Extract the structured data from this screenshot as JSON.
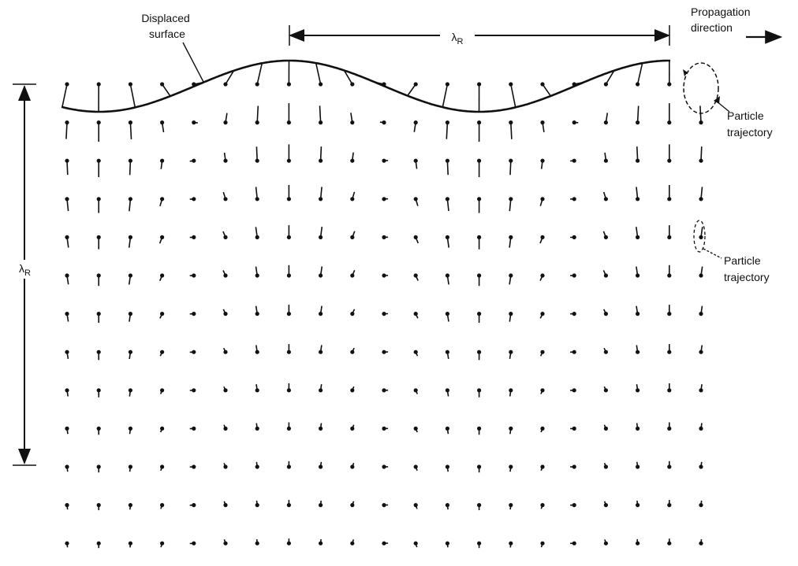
{
  "labels": {
    "displaced_surface": [
      "Displaced",
      "surface"
    ],
    "wavelength_horizontal": {
      "symbol": "λ",
      "subscript": "R"
    },
    "wavelength_vertical": {
      "symbol": "λ",
      "subscript": "R"
    },
    "propagation_direction": [
      "Propagation",
      "direction"
    ],
    "particle_trajectory_surface": [
      "Particle",
      "trajectory"
    ],
    "particle_trajectory_depth": [
      "Particle",
      "trajectory"
    ]
  }
}
